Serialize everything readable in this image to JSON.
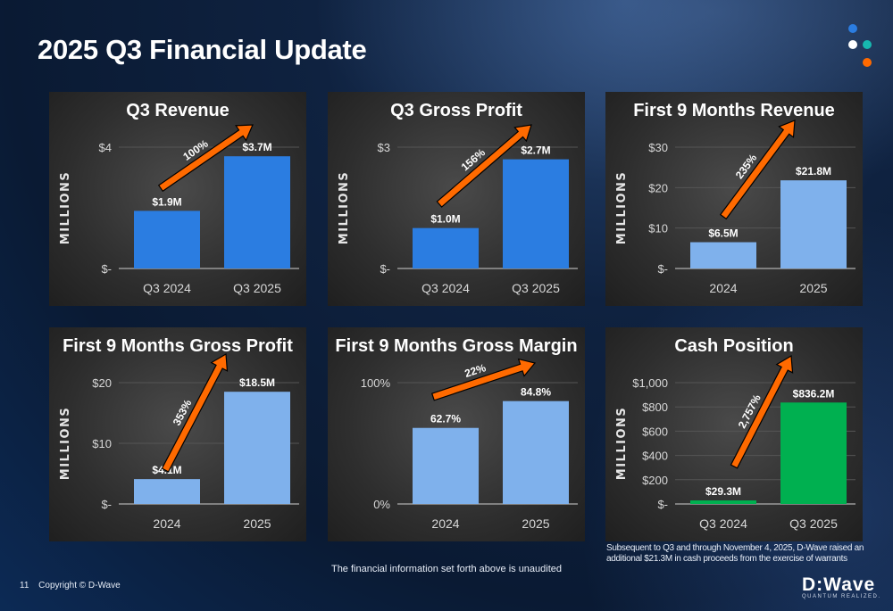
{
  "title": "2025 Q3 Financial Update",
  "colors": {
    "dark_blue": "#2b7de1",
    "light_blue": "#7fb1ec",
    "green": "#00b050",
    "arrow": "#ff6a00"
  },
  "chart_data": [
    {
      "type": "bar",
      "title": "Q3 Revenue",
      "ylabel": "MILLIONS",
      "categories": [
        "Q3 2024",
        "Q3 2025"
      ],
      "values": [
        1.9,
        3.7
      ],
      "data_labels": [
        "$1.9M",
        "$3.7M"
      ],
      "ylim": [
        0,
        4
      ],
      "ticks": [
        0,
        4
      ],
      "tick_labels": [
        "$-",
        "$4"
      ],
      "color": "#2b7de1",
      "growth_label": "100%"
    },
    {
      "type": "bar",
      "title": "Q3 Gross Profit",
      "ylabel": "MILLIONS",
      "categories": [
        "Q3 2024",
        "Q3 2025"
      ],
      "values": [
        1.0,
        2.7
      ],
      "data_labels": [
        "$1.0M",
        "$2.7M"
      ],
      "ylim": [
        0,
        3
      ],
      "ticks": [
        0,
        3
      ],
      "tick_labels": [
        "$-",
        "$3"
      ],
      "color": "#2b7de1",
      "growth_label": "156%"
    },
    {
      "type": "bar",
      "title": "First 9 Months Revenue",
      "ylabel": "MILLIONS",
      "categories": [
        "2024",
        "2025"
      ],
      "values": [
        6.5,
        21.8
      ],
      "data_labels": [
        "$6.5M",
        "$21.8M"
      ],
      "ylim": [
        0,
        30
      ],
      "ticks": [
        0,
        10,
        20,
        30
      ],
      "tick_labels": [
        "$-",
        "$10",
        "$20",
        "$30"
      ],
      "color": "#7fb1ec",
      "growth_label": "235%"
    },
    {
      "type": "bar",
      "title": "First 9 Months Gross Profit",
      "ylabel": "MILLIONS",
      "categories": [
        "2024",
        "2025"
      ],
      "values": [
        4.1,
        18.5
      ],
      "data_labels": [
        "$4.1M",
        "$18.5M"
      ],
      "ylim": [
        0,
        20
      ],
      "ticks": [
        0,
        10,
        20
      ],
      "tick_labels": [
        "$-",
        "$10",
        "$20"
      ],
      "color": "#7fb1ec",
      "growth_label": "353%"
    },
    {
      "type": "bar",
      "title": "First 9 Months Gross Margin",
      "ylabel": "",
      "categories": [
        "2024",
        "2025"
      ],
      "values": [
        62.7,
        84.8
      ],
      "data_labels": [
        "62.7%",
        "84.8%"
      ],
      "ylim": [
        0,
        100
      ],
      "ticks": [
        0,
        100
      ],
      "tick_labels": [
        "0%",
        "100%"
      ],
      "color": "#7fb1ec",
      "growth_label": "22%"
    },
    {
      "type": "bar",
      "title": "Cash Position",
      "ylabel": "MILLIONS",
      "categories": [
        "Q3 2024",
        "Q3 2025"
      ],
      "values": [
        29.3,
        836.2
      ],
      "data_labels": [
        "$29.3M",
        "$836.2M"
      ],
      "ylim": [
        0,
        1000
      ],
      "ticks": [
        0,
        200,
        400,
        600,
        800,
        1000
      ],
      "tick_labels": [
        "$-",
        "$200",
        "$400",
        "$600",
        "$800",
        "$1,000"
      ],
      "color": "#00b050",
      "growth_label": "2,757%"
    }
  ],
  "footnote_cash": [
    "Subsequent to Q3 and through November 4, 2025, D-Wave raised an",
    "additional $21.3M in cash proceeds from the exercise of warrants"
  ],
  "unaudited_note": "The financial information set forth above is unaudited",
  "footer": {
    "page_number": "11",
    "copyright": "Copyright © D-Wave"
  },
  "logo": {
    "wordmark": "D:Wave",
    "tagline": "QUANTUM REALIZED."
  }
}
